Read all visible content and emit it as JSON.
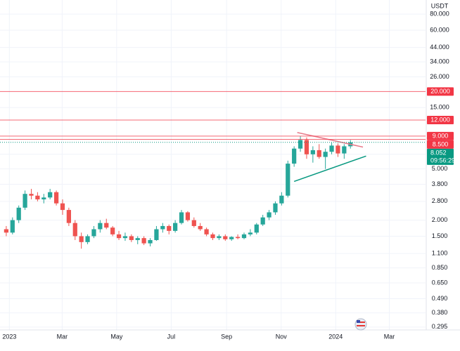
{
  "chart_data": {
    "type": "candlestick",
    "currency": "USDT",
    "log_scale": true,
    "grid": true,
    "up_color": "#26a69a",
    "down_color": "#ef5350",
    "xlim": [
      -1,
      67
    ],
    "ylim": [
      0.28,
      103
    ],
    "xticks": [
      {
        "value": 0.5,
        "label": "2023"
      },
      {
        "value": 8.93,
        "label": "Mar"
      },
      {
        "value": 17.64,
        "label": "May"
      },
      {
        "value": 26.36,
        "label": "Jul"
      },
      {
        "value": 35.21,
        "label": "Sep"
      },
      {
        "value": 43.93,
        "label": "Nov"
      },
      {
        "value": 52.64,
        "label": "2024"
      },
      {
        "value": 61.21,
        "label": "Mar"
      }
    ],
    "yticks": [
      {
        "value": 80,
        "label": "80.000"
      },
      {
        "value": 60,
        "label": "60.000"
      },
      {
        "value": 44,
        "label": "44.000"
      },
      {
        "value": 34,
        "label": "34.000"
      },
      {
        "value": 26,
        "label": "26.000"
      },
      {
        "value": 15,
        "label": "15.000"
      },
      {
        "value": 6.5,
        "label": "6.500"
      },
      {
        "value": 5,
        "label": "5.000"
      },
      {
        "value": 3.8,
        "label": "3.800"
      },
      {
        "value": 2.8,
        "label": "2.800"
      },
      {
        "value": 2,
        "label": "2.000"
      },
      {
        "value": 1.5,
        "label": "1.500"
      },
      {
        "value": 1.1,
        "label": "1.100"
      },
      {
        "value": 0.85,
        "label": "0.850"
      },
      {
        "value": 0.65,
        "label": "0.650"
      },
      {
        "value": 0.49,
        "label": "0.490"
      },
      {
        "value": 0.38,
        "label": "0.380"
      },
      {
        "value": 0.295,
        "label": "0.295"
      }
    ],
    "levels": [
      {
        "value": 20,
        "label": "20.000",
        "color": "#f23645"
      },
      {
        "value": 12,
        "label": "12.000",
        "color": "#f23645"
      },
      {
        "value": 9,
        "label": "9.000",
        "color": "#f23645"
      },
      {
        "value": 8.5,
        "label": "8.500",
        "color": "#f23645"
      }
    ],
    "last": {
      "value": 8.052,
      "label": "8.052",
      "countdown": "09:56:29",
      "color": "#089981"
    },
    "trendlines": [
      {
        "color": "#e87a8a",
        "x": [
          46.5,
          57
        ],
        "y": [
          9.6,
          7.4
        ]
      },
      {
        "color": "#089981",
        "x": [
          46,
          57.5
        ],
        "y": [
          4.0,
          6.3
        ]
      }
    ],
    "candles": {
      "open": [
        1.7,
        1.6,
        2.0,
        2.5,
        3.2,
        3.1,
        2.9,
        3.0,
        3.3,
        2.7,
        2.4,
        1.9,
        1.5,
        1.35,
        1.5,
        1.7,
        1.9,
        1.75,
        1.55,
        1.45,
        1.5,
        1.4,
        1.45,
        1.32,
        1.4,
        1.7,
        1.8,
        1.65,
        1.9,
        2.3,
        2.0,
        1.8,
        1.7,
        1.55,
        1.45,
        1.5,
        1.42,
        1.48,
        1.45,
        1.55,
        1.6,
        1.85,
        2.1,
        2.3,
        2.7,
        3.1,
        5.5,
        7.2,
        8.4,
        6.5,
        7.0,
        6.2,
        6.8,
        7.6,
        6.6,
        7.5
      ],
      "high": [
        1.8,
        2.1,
        2.6,
        3.4,
        3.5,
        3.3,
        3.2,
        3.5,
        3.4,
        2.9,
        2.5,
        2.0,
        1.6,
        1.55,
        1.8,
        2.0,
        2.05,
        1.8,
        1.65,
        1.6,
        1.55,
        1.5,
        1.5,
        1.45,
        1.8,
        1.9,
        1.85,
        2.0,
        2.4,
        2.35,
        2.1,
        1.9,
        1.75,
        1.6,
        1.55,
        1.55,
        1.5,
        1.55,
        1.6,
        1.7,
        1.9,
        2.2,
        2.4,
        2.8,
        3.3,
        5.8,
        7.5,
        9.0,
        8.8,
        7.5,
        7.8,
        7.2,
        8.0,
        7.9,
        7.8,
        8.4
      ],
      "low": [
        1.5,
        1.55,
        1.9,
        2.4,
        2.9,
        2.8,
        2.7,
        2.9,
        2.6,
        2.2,
        1.8,
        1.4,
        1.2,
        1.3,
        1.45,
        1.6,
        1.7,
        1.5,
        1.4,
        1.38,
        1.35,
        1.3,
        1.28,
        1.25,
        1.38,
        1.6,
        1.55,
        1.6,
        1.85,
        1.95,
        1.75,
        1.65,
        1.5,
        1.4,
        1.4,
        1.38,
        1.38,
        1.42,
        1.42,
        1.5,
        1.55,
        1.8,
        2.0,
        2.2,
        2.6,
        3.0,
        5.2,
        6.8,
        6.0,
        5.6,
        6.0,
        5.0,
        6.5,
        6.2,
        6.0,
        7.2
      ],
      "close": [
        1.6,
        2.0,
        2.5,
        3.2,
        3.1,
        2.9,
        3.0,
        3.3,
        2.7,
        2.4,
        1.9,
        1.5,
        1.35,
        1.5,
        1.7,
        1.9,
        1.75,
        1.55,
        1.45,
        1.5,
        1.4,
        1.45,
        1.32,
        1.4,
        1.7,
        1.8,
        1.65,
        1.9,
        2.3,
        2.0,
        1.8,
        1.7,
        1.55,
        1.45,
        1.5,
        1.42,
        1.48,
        1.45,
        1.55,
        1.6,
        1.85,
        2.1,
        2.3,
        2.7,
        3.1,
        5.5,
        7.2,
        8.4,
        6.5,
        7.0,
        6.2,
        6.8,
        7.6,
        6.6,
        7.5,
        8.052
      ]
    }
  }
}
